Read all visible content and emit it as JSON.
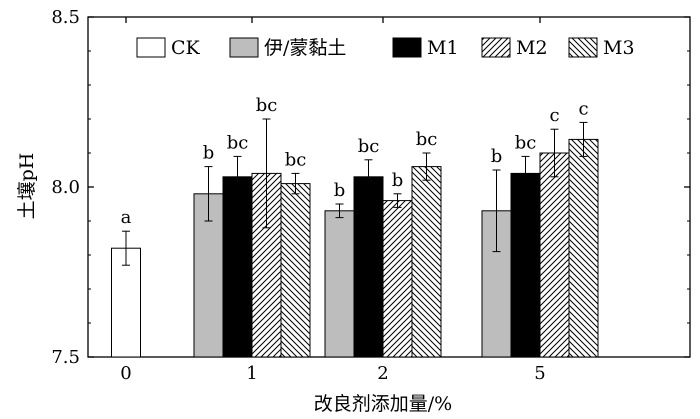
{
  "chart_data": {
    "type": "bar",
    "xlabel": "改良剂添加量/%",
    "ylabel": "土壤pH",
    "ylim": [
      7.5,
      8.5
    ],
    "yticks": [
      "7.5",
      "8.0",
      "8.5"
    ],
    "ytick_values": [
      7.5,
      8.0,
      8.5
    ],
    "categories": [
      "0",
      "1",
      "2",
      "5"
    ],
    "legend_position": "top",
    "series": [
      {
        "name": "CK",
        "fill": "white",
        "values": [
          7.82,
          null,
          null,
          null
        ],
        "errors": [
          0.05,
          null,
          null,
          null
        ],
        "labels": [
          "a",
          "",
          "",
          ""
        ]
      },
      {
        "name": "伊/蒙黏土",
        "fill": "#bdbdbd",
        "values": [
          null,
          7.98,
          7.93,
          7.93
        ],
        "errors": [
          null,
          0.08,
          0.02,
          0.12
        ],
        "labels": [
          "",
          "b",
          "b",
          "b"
        ]
      },
      {
        "name": "M1",
        "fill": "#000000",
        "values": [
          null,
          8.03,
          8.03,
          8.04
        ],
        "errors": [
          null,
          0.06,
          0.05,
          0.05
        ],
        "labels": [
          "",
          "bc",
          "bc",
          "bc"
        ]
      },
      {
        "name": "M2",
        "fill": "hatch-forward",
        "values": [
          null,
          8.04,
          7.96,
          8.1
        ],
        "errors": [
          null,
          0.16,
          0.02,
          0.07
        ],
        "labels": [
          "",
          "bc",
          "b",
          "c"
        ]
      },
      {
        "name": "M3",
        "fill": "hatch-back",
        "values": [
          null,
          8.01,
          8.06,
          8.14
        ],
        "errors": [
          null,
          0.03,
          0.04,
          0.05
        ],
        "labels": [
          "",
          "bc",
          "bc",
          "c"
        ]
      }
    ]
  }
}
